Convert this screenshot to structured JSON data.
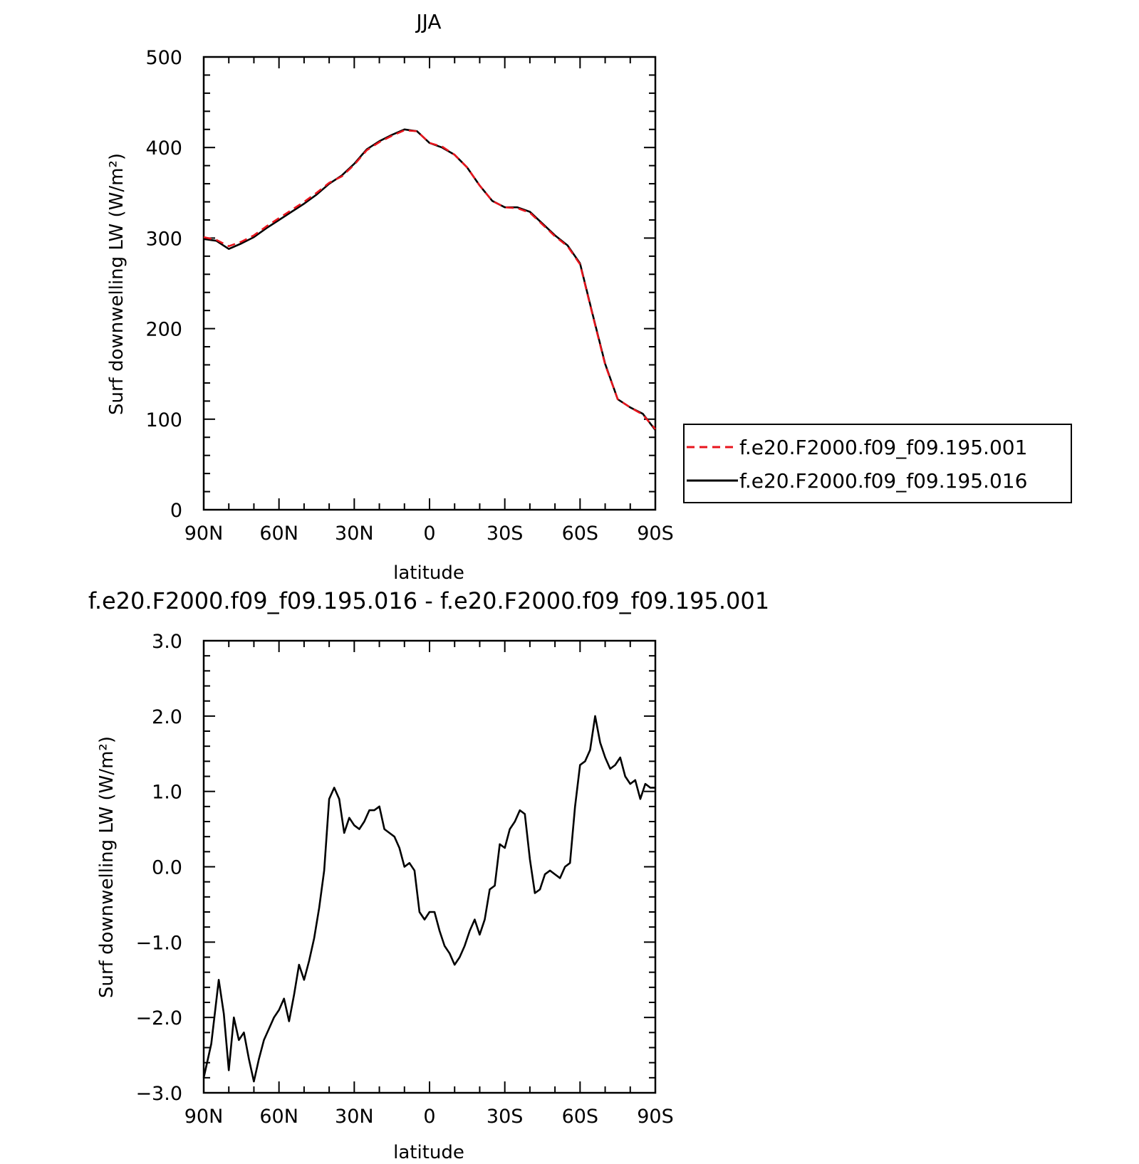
{
  "chart_data": [
    {
      "type": "line",
      "title": "JJA",
      "xlabel": "latitude",
      "ylabel": "Surf downwelling LW (W/m²)",
      "xlim": [
        90,
        -90
      ],
      "ylim": [
        0,
        500
      ],
      "x_ticks": [
        90,
        60,
        30,
        0,
        -30,
        -60,
        -90
      ],
      "x_tick_labels": [
        "90N",
        "60N",
        "30N",
        "0",
        "30S",
        "60S",
        "90S"
      ],
      "y_ticks": [
        0,
        100,
        200,
        300,
        400,
        500
      ],
      "y_tick_labels": [
        "0",
        "100",
        "200",
        "300",
        "400",
        "500"
      ],
      "legend_position": "right",
      "series": [
        {
          "name": "f.e20.F2000.f09_f09.195.001",
          "color": "#e8141c",
          "dash": "dashed",
          "x": [
            90,
            85,
            80,
            75,
            70,
            65,
            60,
            55,
            50,
            45,
            40,
            35,
            30,
            25,
            20,
            15,
            10,
            5,
            0,
            -5,
            -10,
            -15,
            -20,
            -25,
            -30,
            -35,
            -40,
            -45,
            -50,
            -55,
            -60,
            -65,
            -70,
            -75,
            -80,
            -85,
            -90
          ],
          "y": [
            301,
            298,
            291,
            296,
            303,
            313,
            322,
            331,
            340,
            350,
            361,
            368,
            381,
            397,
            406,
            413,
            419,
            418,
            405,
            401,
            392,
            378,
            358,
            341,
            334,
            333,
            328,
            315,
            302,
            291,
            271,
            215,
            160,
            122,
            113,
            105,
            89
          ]
        },
        {
          "name": "f.e20.F2000.f09_f09.195.016",
          "color": "#000000",
          "dash": "solid",
          "x": [
            90,
            85,
            80,
            75,
            70,
            65,
            60,
            55,
            50,
            45,
            40,
            35,
            30,
            25,
            20,
            15,
            10,
            5,
            0,
            -5,
            -10,
            -15,
            -20,
            -25,
            -30,
            -35,
            -40,
            -45,
            -50,
            -55,
            -60,
            -65,
            -70,
            -75,
            -80,
            -85,
            -90
          ],
          "y": [
            299,
            297,
            288,
            294,
            301,
            311,
            320,
            329,
            338,
            348,
            360,
            369,
            382,
            398,
            407,
            414,
            420,
            418,
            405,
            400,
            392,
            378,
            358,
            341,
            334,
            334,
            329,
            316,
            303,
            292,
            272,
            216,
            161,
            122,
            113,
            106,
            88
          ]
        }
      ]
    },
    {
      "type": "line",
      "title": "f.e20.F2000.f09_f09.195.016 - f.e20.F2000.f09_f09.195.001",
      "xlabel": "latitude",
      "ylabel": "Surf downwelling LW (W/m²)",
      "xlim": [
        90,
        -90
      ],
      "ylim": [
        -3.0,
        3.0
      ],
      "x_ticks": [
        90,
        60,
        30,
        0,
        -30,
        -60,
        -90
      ],
      "x_tick_labels": [
        "90N",
        "60N",
        "30N",
        "0",
        "30S",
        "60S",
        "90S"
      ],
      "y_ticks": [
        -3.0,
        -2.0,
        -1.0,
        0.0,
        1.0,
        2.0,
        3.0
      ],
      "y_tick_labels": [
        "−3.0",
        "−2.0",
        "−1.0",
        "0.0",
        "1.0",
        "2.0",
        "3.0"
      ],
      "series": [
        {
          "color": "#000000",
          "dash": "solid",
          "x": [
            90,
            87,
            84,
            82,
            80,
            78,
            76,
            74,
            72,
            70,
            68,
            66,
            64,
            62,
            60,
            58,
            56,
            54,
            52,
            50,
            48,
            46,
            44,
            42,
            40,
            38,
            36,
            34,
            32,
            30,
            28,
            26,
            24,
            22,
            20,
            18,
            16,
            14,
            12,
            10,
            8,
            6,
            4,
            2,
            0,
            -2,
            -4,
            -6,
            -8,
            -10,
            -12,
            -14,
            -16,
            -18,
            -20,
            -22,
            -24,
            -26,
            -28,
            -30,
            -32,
            -34,
            -36,
            -38,
            -40,
            -42,
            -44,
            -46,
            -48,
            -50,
            -52,
            -54,
            -56,
            -58,
            -60,
            -62,
            -64,
            -66,
            -68,
            -70,
            -72,
            -74,
            -76,
            -78,
            -80,
            -82,
            -84,
            -86,
            -88,
            -90
          ],
          "y": [
            -2.8,
            -2.35,
            -1.5,
            -1.95,
            -2.7,
            -2.0,
            -2.3,
            -2.2,
            -2.55,
            -2.85,
            -2.55,
            -2.3,
            -2.15,
            -2.0,
            -1.9,
            -1.75,
            -2.05,
            -1.7,
            -1.3,
            -1.5,
            -1.25,
            -0.95,
            -0.55,
            -0.05,
            0.9,
            1.05,
            0.9,
            0.45,
            0.65,
            0.55,
            0.5,
            0.6,
            0.75,
            0.75,
            0.8,
            0.5,
            0.45,
            0.4,
            0.25,
            0.0,
            0.05,
            -0.05,
            -0.6,
            -0.7,
            -0.6,
            -0.6,
            -0.85,
            -1.05,
            -1.15,
            -1.3,
            -1.2,
            -1.05,
            -0.85,
            -0.7,
            -0.9,
            -0.7,
            -0.3,
            -0.25,
            0.3,
            0.25,
            0.5,
            0.6,
            0.75,
            0.7,
            0.1,
            -0.35,
            -0.3,
            -0.1,
            -0.05,
            -0.1,
            -0.15,
            0.0,
            0.05,
            0.8,
            1.35,
            1.4,
            1.55,
            2.0,
            1.65,
            1.45,
            1.3,
            1.35,
            1.45,
            1.2,
            1.1,
            1.15,
            0.9,
            1.1,
            1.05,
            1.05
          ]
        }
      ]
    }
  ]
}
